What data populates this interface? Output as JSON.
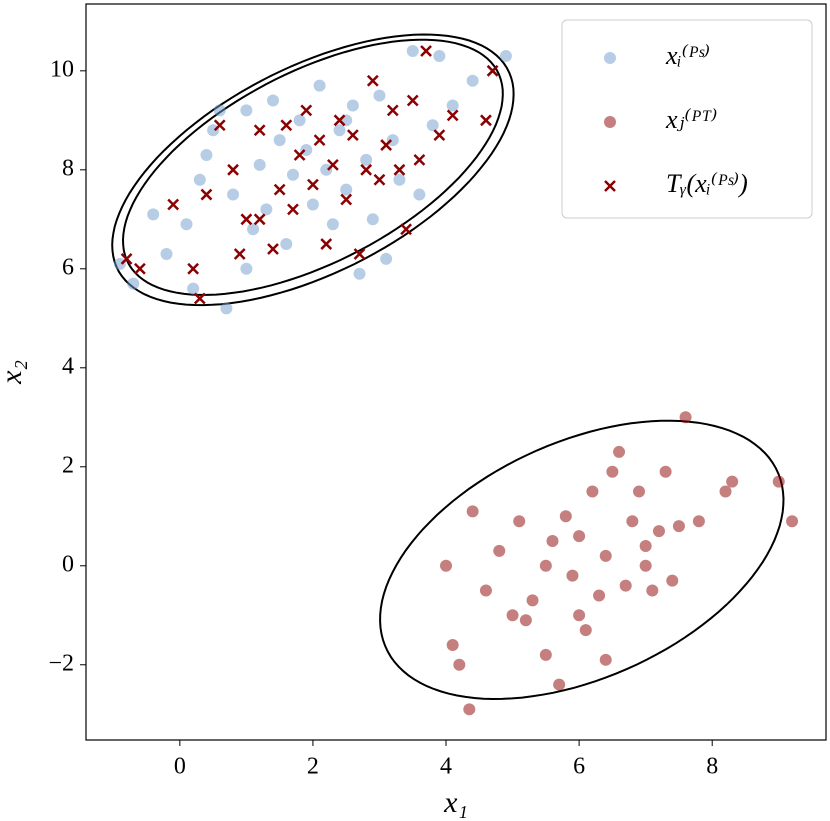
{
  "chart_data": {
    "type": "scatter",
    "xlabel": "x₁",
    "ylabel": "x₂",
    "xlim": [
      -1.41,
      9.71
    ],
    "ylim": [
      -3.52,
      11.35
    ],
    "xticks": [
      0,
      2,
      4,
      6,
      8
    ],
    "yticks": [
      {
        "value": -2,
        "label": "−2"
      },
      0,
      2,
      4,
      6,
      8,
      10
    ],
    "legend": "upper right",
    "series": [
      {
        "name": "xᵢ⁽ᴾˢ⁾",
        "color": "#6f9ccc",
        "marker": "circle",
        "x": [
          -0.9,
          -0.7,
          -0.4,
          -0.2,
          0.1,
          0.3,
          0.4,
          0.5,
          0.7,
          0.8,
          1.0,
          1.1,
          1.2,
          1.3,
          1.4,
          1.5,
          1.6,
          1.7,
          1.8,
          1.9,
          2.0,
          2.1,
          2.2,
          2.3,
          2.4,
          2.5,
          2.6,
          2.7,
          2.8,
          2.9,
          3.0,
          3.1,
          3.2,
          3.3,
          3.5,
          3.6,
          3.8,
          4.1,
          4.4,
          4.9,
          0.2,
          1.0,
          2.5,
          3.9,
          0.6
        ],
        "values": [
          6.1,
          5.7,
          7.1,
          6.3,
          6.9,
          7.8,
          8.3,
          8.8,
          5.2,
          7.5,
          9.2,
          6.8,
          8.1,
          7.2,
          9.4,
          8.6,
          6.5,
          7.9,
          9.0,
          8.4,
          7.3,
          9.7,
          8.0,
          6.9,
          8.8,
          7.6,
          9.3,
          5.9,
          8.2,
          7.0,
          9.5,
          6.2,
          8.6,
          7.8,
          10.4,
          7.5,
          8.9,
          9.3,
          9.8,
          10.3,
          5.6,
          6.0,
          9.0,
          10.3,
          9.2
        ]
      },
      {
        "name": "xⱼ⁽ᴾᵀ⁾",
        "color": "#8b0000",
        "marker": "circle",
        "x": [
          4.0,
          4.1,
          4.2,
          4.4,
          4.35,
          4.6,
          4.8,
          5.0,
          5.1,
          5.3,
          5.5,
          5.6,
          5.7,
          5.8,
          5.9,
          6.0,
          6.1,
          6.2,
          6.3,
          6.4,
          6.5,
          6.6,
          6.7,
          6.8,
          6.9,
          7.0,
          7.1,
          7.2,
          7.3,
          7.4,
          7.5,
          7.6,
          7.8,
          8.2,
          8.3,
          9.0,
          9.2,
          5.2,
          6.0,
          7.0,
          5.5,
          6.4
        ],
        "values": [
          0.0,
          -1.6,
          -2.0,
          1.1,
          -2.9,
          -0.5,
          0.3,
          -1.0,
          0.9,
          -0.7,
          -1.8,
          0.5,
          -2.4,
          1.0,
          -0.2,
          0.6,
          -1.3,
          1.5,
          -0.6,
          0.2,
          1.9,
          2.3,
          -0.4,
          0.9,
          1.5,
          0.0,
          -0.5,
          0.7,
          1.9,
          -0.3,
          0.8,
          3.0,
          0.9,
          1.5,
          1.7,
          1.7,
          0.9,
          -1.1,
          -1.0,
          0.4,
          0.0,
          -1.9
        ]
      },
      {
        "name": "Tᵧ(xᵢ⁽ᴾˢ⁾)",
        "color": "#8b0000",
        "marker": "x",
        "x": [
          -0.8,
          -0.6,
          -0.1,
          0.2,
          0.3,
          0.4,
          0.6,
          0.8,
          0.9,
          1.0,
          1.2,
          1.4,
          1.5,
          1.6,
          1.7,
          1.8,
          1.9,
          2.0,
          2.1,
          2.2,
          2.3,
          2.4,
          2.5,
          2.6,
          2.7,
          2.8,
          2.9,
          3.0,
          3.1,
          3.2,
          3.3,
          3.5,
          3.6,
          3.7,
          3.9,
          4.1,
          4.6,
          4.7,
          3.4,
          1.2
        ],
        "values": [
          6.2,
          6.0,
          7.3,
          6.0,
          5.4,
          7.5,
          8.9,
          8.0,
          6.3,
          7.0,
          8.8,
          6.4,
          7.6,
          8.9,
          7.2,
          8.3,
          9.2,
          7.7,
          8.6,
          6.5,
          8.1,
          9.0,
          7.4,
          8.7,
          6.3,
          8.0,
          9.8,
          7.8,
          8.5,
          9.2,
          8.0,
          9.4,
          8.2,
          10.4,
          8.7,
          9.1,
          9.0,
          10.0,
          6.8,
          7.0
        ]
      }
    ],
    "ellipses": [
      {
        "center": [
          2.0,
          8.0
        ],
        "axes": [
          3.6,
          1.9
        ],
        "angle": 40
      },
      {
        "center": [
          2.0,
          8.05
        ],
        "axes": [
          3.42,
          1.76
        ],
        "angle": 40
      },
      {
        "center": [
          6.04,
          0.12
        ],
        "axes": [
          3.5,
          2.2
        ],
        "angle": 40
      }
    ]
  }
}
